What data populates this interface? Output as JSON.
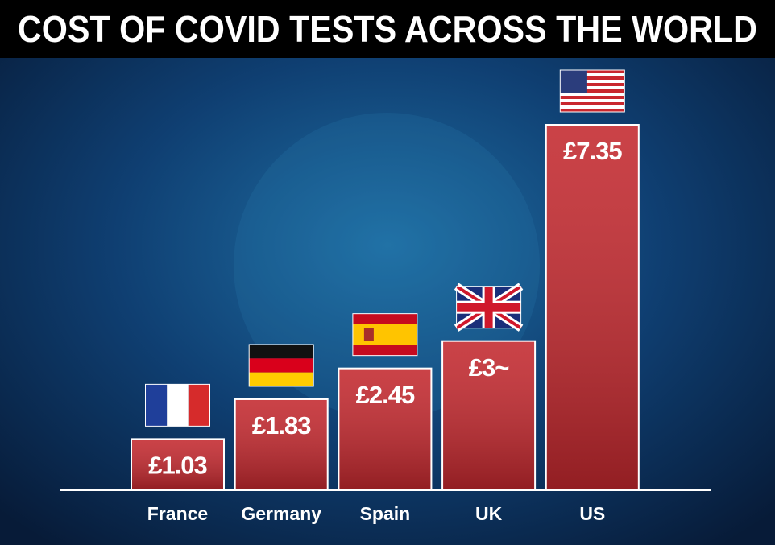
{
  "chart_data": {
    "type": "bar",
    "title": "COST OF COVID TESTS ACROSS THE WORLD",
    "categories": [
      "France",
      "Germany",
      "Spain",
      "UK",
      "US"
    ],
    "values": [
      1.03,
      1.83,
      2.45,
      3,
      7.35
    ],
    "value_labels": [
      "£1.03",
      "£1.83",
      "£2.45",
      "£3~",
      "£7.35"
    ],
    "color": "#c3282e"
  }
}
